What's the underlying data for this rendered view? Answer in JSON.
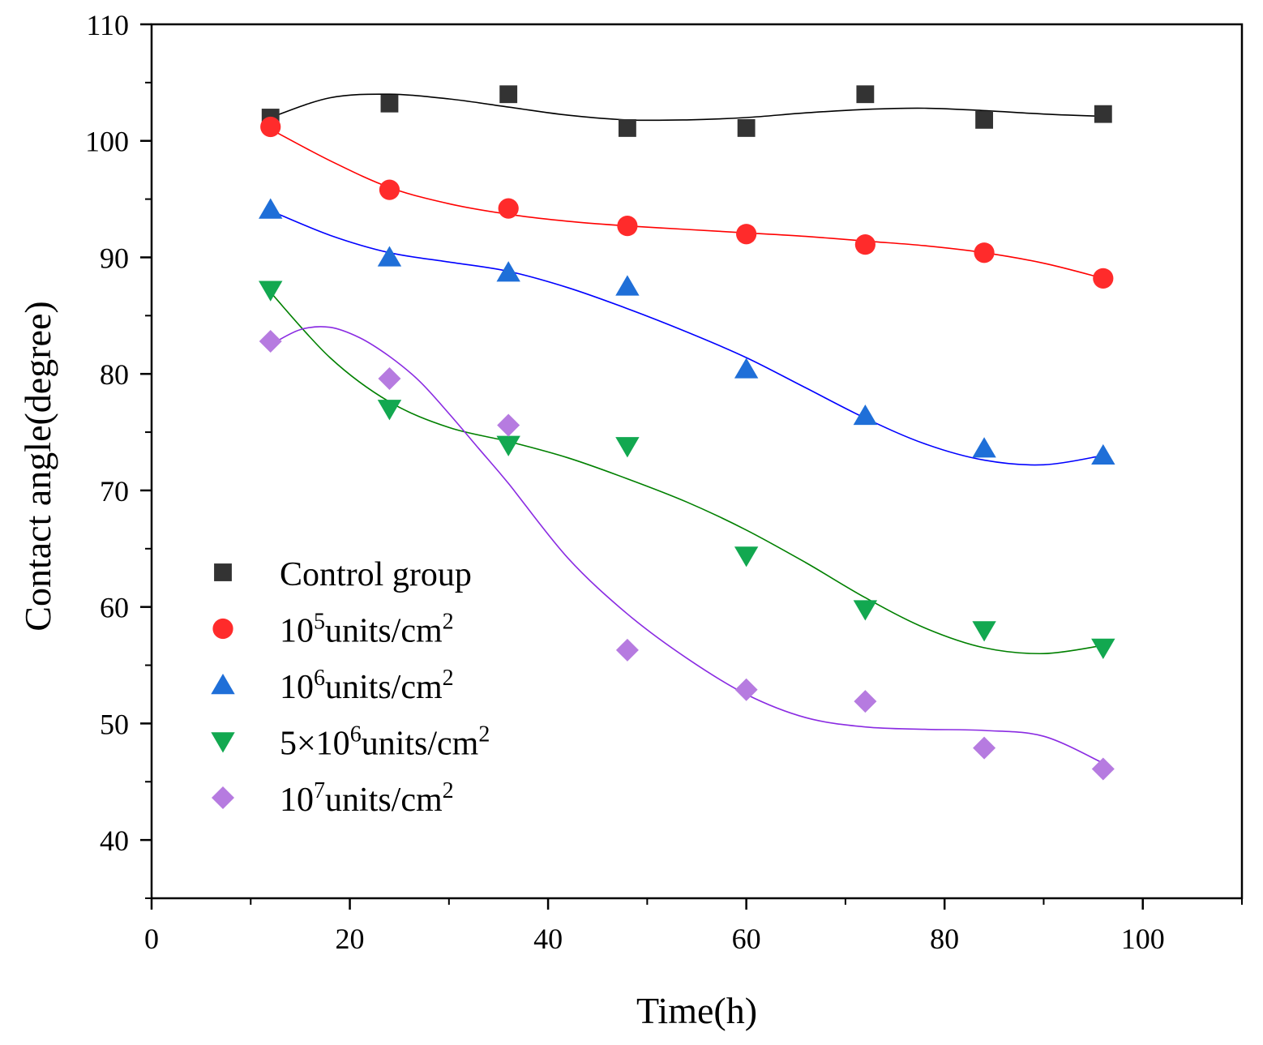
{
  "chart_data": {
    "type": "scatter",
    "title": "",
    "xlabel": "Time(h)",
    "ylabel": "Contact angle(degree)",
    "xlim": [
      0,
      110
    ],
    "ylim": [
      35,
      110
    ],
    "xticks": [
      0,
      20,
      40,
      60,
      80,
      100
    ],
    "yticks": [
      40,
      50,
      60,
      70,
      80,
      90,
      100,
      110
    ],
    "x_minor_step": 10,
    "y_minor_step": 5,
    "grid": false,
    "legend_position": "bottom-left",
    "fit_curves": true,
    "series": [
      {
        "name": "Control group",
        "legend_base": "Control group",
        "legend_sup": "",
        "legend_suffix": "",
        "marker": "square",
        "color": "#333333",
        "x": [
          12,
          24,
          36,
          48,
          60,
          72,
          84,
          96
        ],
        "values": [
          102.0,
          103.2,
          104.0,
          101.1,
          101.1,
          104.0,
          101.8,
          102.3
        ]
      },
      {
        "name": "10^5units/cm^2",
        "legend_base": "10",
        "legend_sup": "5",
        "legend_suffix": "units/cm",
        "marker": "circle",
        "color": "#ff2b2b",
        "x": [
          12,
          24,
          36,
          48,
          60,
          72,
          84,
          96
        ],
        "values": [
          101.2,
          95.8,
          94.2,
          92.7,
          92.0,
          91.1,
          90.4,
          88.2
        ]
      },
      {
        "name": "10^6units/cm^2",
        "legend_base": "10",
        "legend_sup": "6",
        "legend_suffix": "units/cm",
        "marker": "triangle-up",
        "color": "#1f6fd8",
        "x": [
          12,
          24,
          36,
          48,
          60,
          72,
          84,
          96
        ],
        "values": [
          94.1,
          90.0,
          88.7,
          87.5,
          80.4,
          76.4,
          73.6,
          73.0
        ]
      },
      {
        "name": "5×10^6units/cm^2",
        "legend_base": "5×10",
        "legend_sup": "6",
        "legend_suffix": "units/cm",
        "marker": "triangle-down",
        "color": "#12a850",
        "x": [
          12,
          24,
          36,
          48,
          60,
          72,
          84,
          96
        ],
        "values": [
          87.2,
          77.0,
          73.9,
          73.8,
          64.4,
          59.8,
          58.0,
          56.5
        ]
      },
      {
        "name": "10^7units/cm^2",
        "legend_base": "10",
        "legend_sup": "7",
        "legend_suffix": "units/cm",
        "marker": "diamond",
        "color": "#b67be0",
        "x": [
          12,
          24,
          36,
          48,
          60,
          72,
          84,
          96
        ],
        "values": [
          82.8,
          79.6,
          75.6,
          56.3,
          52.9,
          51.9,
          47.9,
          46.1
        ]
      }
    ],
    "fits": [
      {
        "series": "Control group",
        "color": "#000000",
        "x": [
          12,
          18,
          24,
          30,
          36,
          42,
          48,
          54,
          60,
          66,
          72,
          78,
          84,
          90,
          96
        ],
        "values": [
          102.0,
          103.7,
          104.0,
          103.6,
          102.9,
          102.2,
          101.8,
          101.8,
          102.0,
          102.4,
          102.7,
          102.8,
          102.6,
          102.3,
          102.1
        ]
      },
      {
        "series": "10^5units/cm^2",
        "color": "#ff0000",
        "x": [
          12,
          18,
          24,
          30,
          36,
          42,
          48,
          54,
          60,
          66,
          72,
          78,
          84,
          90,
          96
        ],
        "values": [
          101.0,
          98.3,
          96.0,
          94.6,
          93.7,
          93.1,
          92.7,
          92.4,
          92.1,
          91.8,
          91.4,
          91.0,
          90.4,
          89.5,
          88.2
        ]
      },
      {
        "series": "10^6units/cm^2",
        "color": "#0000ff",
        "x": [
          12,
          18,
          24,
          30,
          36,
          42,
          48,
          54,
          60,
          66,
          72,
          78,
          84,
          90,
          96
        ],
        "values": [
          94.0,
          91.9,
          90.4,
          89.6,
          88.8,
          87.4,
          85.6,
          83.6,
          81.4,
          78.8,
          76.2,
          74.0,
          72.6,
          72.2,
          73.0
        ]
      },
      {
        "series": "5×10^6units/cm^2",
        "color": "#008000",
        "x": [
          12,
          18,
          24,
          30,
          36,
          42,
          48,
          54,
          60,
          66,
          72,
          78,
          84,
          90,
          96
        ],
        "values": [
          87.0,
          81.4,
          77.6,
          75.4,
          74.2,
          72.8,
          71.0,
          69.0,
          66.6,
          63.8,
          60.8,
          58.2,
          56.5,
          56.0,
          56.7
        ]
      },
      {
        "series": "10^7units/cm^2",
        "color": "#8a2be2",
        "x": [
          12,
          15,
          18,
          21,
          24,
          27,
          30,
          33,
          36,
          42,
          48,
          54,
          60,
          66,
          72,
          78,
          84,
          90,
          96
        ],
        "values": [
          82.5,
          83.8,
          84.0,
          83.1,
          81.5,
          79.4,
          76.6,
          73.6,
          70.6,
          64.2,
          59.4,
          55.6,
          52.5,
          50.5,
          49.7,
          49.5,
          49.4,
          48.9,
          46.6
        ]
      }
    ]
  }
}
